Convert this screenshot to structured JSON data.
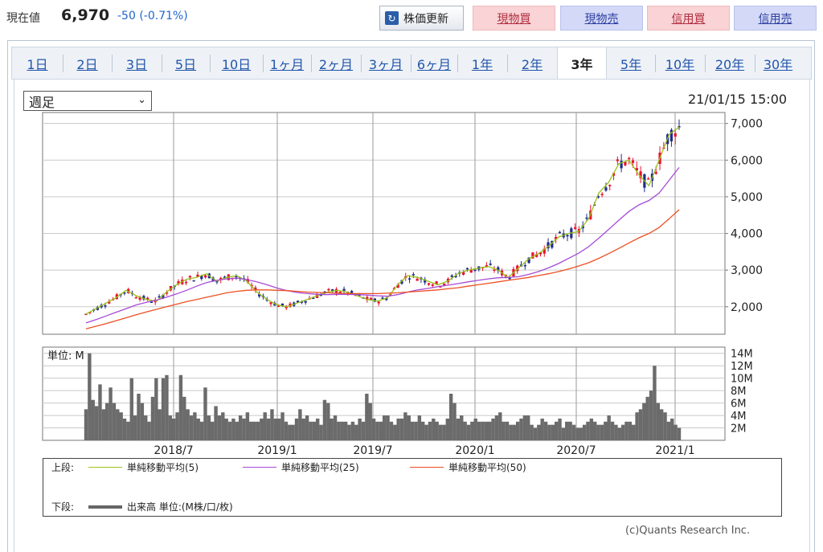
{
  "header": {
    "price_label": "現在値",
    "price_value": "6,970",
    "price_change": "-50 (-0.71%)",
    "refresh_label": "株価更新",
    "buttons": [
      {
        "label": "現物買",
        "kind": "buy"
      },
      {
        "label": "現物売",
        "kind": "sell"
      },
      {
        "label": "信用買",
        "kind": "buy"
      },
      {
        "label": "信用売",
        "kind": "sell"
      }
    ]
  },
  "tabs": [
    "1日",
    "2日",
    "3日",
    "5日",
    "10日",
    "1ヶ月",
    "2ヶ月",
    "3ヶ月",
    "6ヶ月",
    "1年",
    "2年",
    "3年",
    "5年",
    "10年",
    "20年",
    "30年"
  ],
  "active_tab": "3年",
  "period_select": "週足",
  "timestamp": "21/01/15 15:00",
  "chart_data": [
    {
      "type": "candlestick",
      "title": "",
      "y_ticks": [
        "7,000",
        "6,000",
        "5,000",
        "4,000",
        "3,000",
        "2,000"
      ],
      "y_tick_values": [
        7000,
        6000,
        5000,
        4000,
        3000,
        2000
      ],
      "ylim": [
        1250,
        7300
      ],
      "grid": true,
      "colors": {
        "up": "#e8102c",
        "down": "#1f2d8a",
        "ma5": "#9bc21a",
        "ma25": "#a64bd6",
        "ma50": "#ec5022"
      },
      "series": [
        {
          "name": "単純移動平均(5)",
          "values": [
            1800,
            1950,
            2100,
            2250,
            2450,
            2300,
            2200,
            2150,
            2400,
            2600,
            2750,
            2800,
            2900,
            2700,
            2800,
            2850,
            2700,
            2400,
            2200,
            2050,
            2000,
            2100,
            2200,
            2300,
            2400,
            2450,
            2400,
            2300,
            2200,
            2150,
            2250,
            2600,
            2850,
            2800,
            2700,
            2600,
            2700,
            2900,
            3000,
            3050,
            3100,
            3000,
            2800,
            3050,
            3300,
            3450,
            3650,
            3900,
            4000,
            4050,
            4400,
            5100,
            5400,
            5900,
            6000,
            5600,
            5300,
            6000,
            6700,
            6900
          ]
        },
        {
          "name": "単純移動平均(25)",
          "values": [
            1560,
            1650,
            1750,
            1850,
            1950,
            2050,
            2120,
            2180,
            2260,
            2350,
            2450,
            2560,
            2660,
            2720,
            2760,
            2780,
            2740,
            2680,
            2600,
            2510,
            2440,
            2390,
            2360,
            2340,
            2330,
            2340,
            2340,
            2330,
            2320,
            2300,
            2290,
            2330,
            2400,
            2460,
            2500,
            2550,
            2590,
            2630,
            2680,
            2720,
            2760,
            2790,
            2800,
            2820,
            2880,
            2960,
            3060,
            3180,
            3320,
            3460,
            3640,
            3870,
            4110,
            4360,
            4600,
            4780,
            4900,
            5100,
            5450,
            5800
          ]
        },
        {
          "name": "単純移動平均(50)",
          "values": [
            1400,
            1470,
            1540,
            1620,
            1700,
            1780,
            1860,
            1930,
            2000,
            2070,
            2140,
            2200,
            2260,
            2320,
            2380,
            2420,
            2450,
            2460,
            2460,
            2450,
            2440,
            2420,
            2400,
            2390,
            2380,
            2370,
            2360,
            2360,
            2360,
            2360,
            2370,
            2380,
            2400,
            2420,
            2440,
            2460,
            2490,
            2520,
            2560,
            2600,
            2640,
            2680,
            2720,
            2760,
            2800,
            2850,
            2900,
            2960,
            3030,
            3110,
            3200,
            3320,
            3450,
            3590,
            3740,
            3880,
            4000,
            4160,
            4400,
            4650
          ]
        }
      ]
    },
    {
      "type": "bar",
      "unit_label": "単位: M",
      "y_ticks": [
        "14M",
        "12M",
        "10M",
        "8M",
        "6M",
        "4M",
        "2M"
      ],
      "y_tick_values": [
        14,
        12,
        10,
        8,
        6,
        4,
        2
      ],
      "ylim": [
        0,
        15
      ],
      "x_ticks": [
        "2018/7",
        "2019/1",
        "2019/7",
        "2020/1",
        "2020/7",
        "2021/1"
      ],
      "values": [
        5,
        14,
        6.5,
        5.5,
        9,
        5,
        6,
        8.5,
        6,
        5,
        4.5,
        3.5,
        3,
        10,
        4,
        7.5,
        6,
        4,
        3,
        7,
        10,
        5,
        10,
        10.5,
        4,
        3.5,
        4.5,
        10.5,
        7,
        5,
        4,
        4.5,
        3.5,
        3,
        8.5,
        4,
        3,
        5.5,
        4,
        4.5,
        3.5,
        3,
        3.5,
        3,
        4,
        3.5,
        4.5,
        3,
        3,
        3,
        3.5,
        4.5,
        3.5,
        5,
        3.5,
        3.5,
        4.5,
        3,
        2.5,
        2.5,
        3.5,
        5,
        3.5,
        4,
        3,
        3,
        3.5,
        2.5,
        6.5,
        6,
        3.5,
        4,
        3,
        3,
        3,
        2.5,
        3,
        2.5,
        3.5,
        3,
        7.5,
        6,
        3.5,
        3,
        3,
        4,
        4,
        3,
        2.5,
        3.5,
        3.5,
        4.5,
        4,
        3,
        3,
        4,
        3,
        2.5,
        3,
        3.5,
        3,
        2.5,
        2.5,
        3.5,
        7.5,
        6,
        3.5,
        4,
        3,
        2.5,
        3,
        3.5,
        3,
        3,
        3,
        3,
        3.5,
        4,
        4.5,
        3,
        3,
        2.5,
        2.5,
        3,
        3.5,
        4,
        4,
        2.5,
        2,
        2.5,
        3.5,
        3,
        2.5,
        2.5,
        3,
        3.5,
        2,
        3,
        3,
        2.5,
        2,
        2,
        2.5,
        3,
        3.5,
        3,
        2.5,
        2.5,
        3,
        4,
        3,
        2.5,
        2,
        2.5,
        3,
        3,
        2.5,
        4.5,
        5,
        6,
        7,
        8,
        12,
        6,
        5,
        4.5,
        3,
        3.5,
        2.5,
        2
      ]
    }
  ],
  "legend": {
    "upper_label": "上段:",
    "lower_label": "下段:",
    "items": [
      {
        "label": "単純移動平均(5)",
        "color": "#9bc21a"
      },
      {
        "label": "単純移動平均(25)",
        "color": "#a64bd6"
      },
      {
        "label": "単純移動平均(50)",
        "color": "#ec5022"
      }
    ],
    "volume_label": "出来高 単位:(M株/口/枚)",
    "volume_color": "#666666"
  },
  "credit": "(c)Quants Research Inc."
}
